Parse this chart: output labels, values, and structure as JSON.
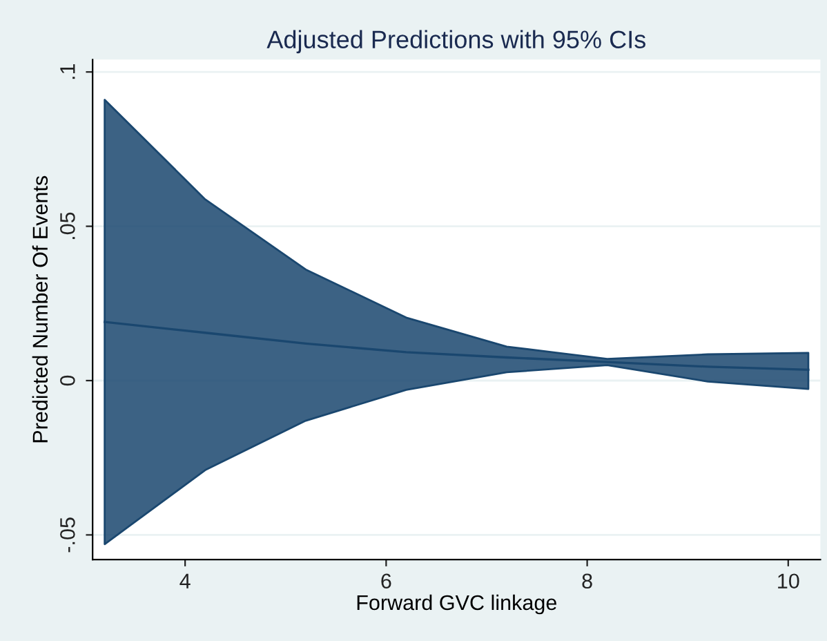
{
  "chart_data": {
    "type": "line",
    "title": "Adjusted Predictions with 95% CIs",
    "xlabel": "Forward GVC linkage",
    "ylabel": "Predicted Number Of Events",
    "x": [
      3.2,
      4.2,
      5.2,
      6.2,
      7.2,
      8.2,
      9.2,
      10.2
    ],
    "series": [
      {
        "color": "#1a476f",
        "values": [
          0.019,
          0.0155,
          0.012,
          0.0092,
          0.0075,
          0.006,
          0.0045,
          0.0035
        ],
        "lower": [
          -0.053,
          -0.029,
          -0.013,
          -0.003,
          0.0027,
          0.005,
          -0.0003,
          -0.0027
        ],
        "upper": [
          0.091,
          0.0587,
          0.036,
          0.0204,
          0.011,
          0.007,
          0.0085,
          0.009
        ]
      }
    ],
    "xlim": [
      3.08,
      10.32
    ],
    "ylim": [
      -0.058,
      0.104
    ],
    "xticks": [
      4,
      6,
      8,
      10
    ],
    "yticks": [
      {
        "value": -0.05,
        "label": "-.05"
      },
      {
        "value": 0,
        "label": "0"
      },
      {
        "value": 0.05,
        "label": ".05"
      },
      {
        "value": 0.1,
        "label": ".1"
      }
    ],
    "grid": "y",
    "marker": "none",
    "line_style": "solid"
  }
}
